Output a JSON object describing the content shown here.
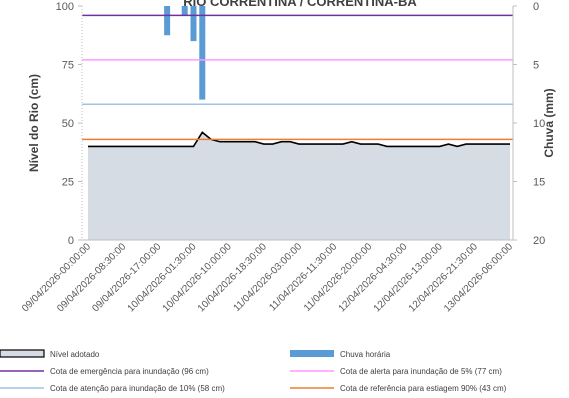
{
  "chart_data": {
    "type": "combo",
    "title": "RIO CORRENTINA / CORRENTINA-BA",
    "y_label": "Nível do Rio (cm)",
    "y2_label": "Chuva (mm)",
    "categories": [
      "09/04/2026-00:00:00",
      null,
      null,
      null,
      "09/04/2026-08:30:00",
      null,
      null,
      null,
      "09/04/2026-17:00:00",
      null,
      null,
      null,
      "10/04/2026-01:30:00",
      null,
      null,
      null,
      "10/04/2026-10:00:00",
      null,
      null,
      null,
      "10/04/2026-18:30:00",
      null,
      null,
      null,
      "11/04/2026-03:00:00",
      null,
      null,
      null,
      "11/04/2026-11:30:00",
      null,
      null,
      null,
      "11/04/2026-20:00:00",
      null,
      null,
      null,
      "12/04/2026-04:30:00",
      null,
      null,
      null,
      "12/04/2026-13:00:00",
      null,
      null,
      null,
      "12/04/2026-21:30:00",
      null,
      null,
      null,
      "13/04/2026-06:00:00"
    ],
    "series": [
      {
        "name": "Nível adotado",
        "type": "area",
        "color": "#d6dce4",
        "line_color": "#000000",
        "values": [
          40,
          40,
          40,
          40,
          40,
          40,
          40,
          40,
          40,
          40,
          40,
          40,
          40,
          46,
          43,
          42,
          42,
          42,
          42,
          42,
          41,
          41,
          42,
          42,
          41,
          41,
          41,
          41,
          41,
          41,
          42,
          41,
          41,
          41,
          40,
          40,
          40,
          40,
          40,
          40,
          40,
          41,
          40,
          41,
          41,
          41,
          41,
          41,
          41
        ]
      },
      {
        "name": "Chuva horária",
        "type": "bar",
        "axis": "y2",
        "color": "#5b9bd5",
        "values": [
          0,
          0,
          0,
          0,
          0,
          0,
          0,
          0,
          0,
          2.5,
          0,
          0.8,
          3,
          8,
          0,
          0,
          0,
          0,
          0,
          0,
          0,
          0,
          0,
          0,
          0,
          0,
          0,
          0,
          0,
          0,
          0,
          0,
          0,
          0,
          0,
          0,
          0,
          0,
          0,
          0,
          0,
          0,
          0,
          0,
          0,
          0,
          0,
          0,
          0
        ]
      }
    ],
    "reference_lines": [
      {
        "name": "Cota de emergência para inundação (96 cm)",
        "value": 96,
        "color": "#7030a0"
      },
      {
        "name": "Cota de alerta para inundação de 5% (77 cm)",
        "value": 77,
        "color": "#ff99ff"
      },
      {
        "name": "Cota de atenção para inundação de 10% (58 cm)",
        "value": 58,
        "color": "#9dc3e6"
      },
      {
        "name": "Cota de referência para estiagem 90% (43 cm)",
        "value": 43,
        "color": "#ed7d31"
      }
    ],
    "ylim": [
      0,
      100
    ],
    "yticks": [
      0,
      25,
      50,
      75,
      100
    ],
    "y2lim": [
      20,
      0
    ],
    "y2ticks": [
      0,
      5,
      10,
      15,
      20
    ]
  }
}
